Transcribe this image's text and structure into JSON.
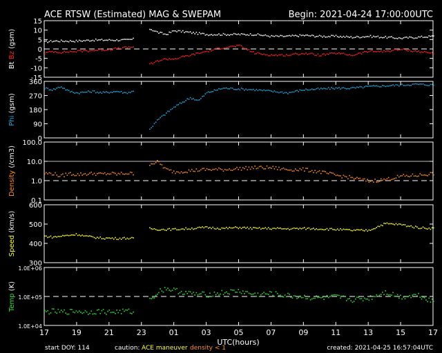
{
  "header": {
    "title": "ACE RTSW (Estimated) MAG & SWEPAM",
    "begin": "Begin: 2021-04-24 17:00:00UTC"
  },
  "footer": {
    "start_doy": "start DOY: 114",
    "caution_label": "caution:",
    "caution_maneuver": "ACE maneuver",
    "caution_density": "density < 1",
    "created": "created: 2021-04-25 16:57:04UTC"
  },
  "colors": {
    "bt": "#ffffff",
    "bz": "#ff2020",
    "phi": "#20a8e0",
    "density": "#ff8c20",
    "speed": "#ffff30",
    "temp": "#30e030",
    "axis": "#ffffff",
    "maneuver": "#ffff30",
    "density_warn": "#ff8c20"
  },
  "chart_data": {
    "type": "scatter",
    "x_axis": {
      "label": "UTC(hours)",
      "range_hours_from_start": [
        0,
        24
      ],
      "tick_labels": [
        "17",
        "19",
        "21",
        "23",
        "01",
        "03",
        "05",
        "07",
        "09",
        "11",
        "13",
        "15",
        "17"
      ]
    },
    "panels": [
      {
        "key": "mag",
        "ylabel_parts": [
          {
            "text": "Bt",
            "color": "#ffffff"
          },
          {
            "text": "  Bz",
            "color": "#ff2020"
          },
          {
            "text": "  (gsm)",
            "color": "#ffffff"
          }
        ],
        "ylim": [
          -15,
          15
        ],
        "ticks": [
          "15",
          "10",
          "5",
          "0",
          "-5",
          "-10",
          "-15"
        ],
        "tick_values": [
          15,
          10,
          5,
          0,
          -5,
          -10,
          -15
        ],
        "dashed_line": 0,
        "series": [
          {
            "name": "Bt",
            "color": "#ffffff",
            "x": [
              0,
              0.5,
              1,
              2,
              3,
              4,
              5,
              5.5,
              6.5,
              7,
              7.5,
              8,
              9,
              10,
              11,
              12,
              13,
              14,
              15,
              16,
              17,
              18,
              19,
              20,
              21,
              22,
              23,
              24
            ],
            "y": [
              4,
              4.5,
              4.5,
              4.5,
              5,
              5,
              5,
              5.5,
              11,
              9,
              8,
              10,
              9,
              8,
              8,
              8,
              8,
              7,
              7,
              7.5,
              7,
              7,
              6.5,
              7,
              6.5,
              6,
              6.5,
              7
            ]
          },
          {
            "name": "Bz",
            "color": "#ff2020",
            "x": [
              0,
              0.5,
              1,
              2,
              3,
              4,
              5,
              5.5,
              6.5,
              7,
              7.5,
              8,
              9,
              10,
              11,
              12,
              13,
              14,
              15,
              16,
              17,
              18,
              19,
              20,
              21,
              22,
              23,
              24
            ],
            "y": [
              -2,
              -1,
              -1.5,
              -1,
              -0.5,
              0,
              1,
              1.5,
              -8,
              -6,
              -5,
              -5,
              -3,
              -1,
              1,
              2,
              -2,
              -3,
              -3,
              -2,
              -3,
              -2,
              -3,
              -1,
              -1,
              0,
              -1,
              -2
            ]
          }
        ]
      },
      {
        "key": "phi",
        "ylabel_parts": [
          {
            "text": "Phi",
            "color": "#20a8e0"
          },
          {
            "text": " (gsm)",
            "color": "#ffffff"
          }
        ],
        "ylim": [
          0,
          360
        ],
        "ticks": [
          "360",
          "270",
          "180",
          "90",
          "0"
        ],
        "tick_values": [
          360,
          270,
          180,
          90,
          0
        ],
        "series": [
          {
            "name": "Phi",
            "color": "#20a8e0",
            "x": [
              0,
              0.5,
              1,
              1.5,
              2,
              2.5,
              3,
              3.5,
              4,
              4.5,
              5,
              5.5,
              6.5,
              7,
              7.5,
              8,
              8.5,
              9,
              9.5,
              10,
              11,
              12,
              13,
              14,
              15,
              16,
              17,
              18,
              19,
              20,
              21,
              22,
              23,
              24
            ],
            "y": [
              320,
              310,
              330,
              300,
              290,
              295,
              300,
              290,
              295,
              300,
              290,
              300,
              60,
              120,
              160,
              200,
              230,
              260,
              240,
              290,
              320,
              315,
              310,
              300,
              290,
              310,
              315,
              320,
              320,
              330,
              335,
              340,
              345,
              340
            ]
          }
        ]
      },
      {
        "key": "density",
        "ylabel_parts": [
          {
            "text": "Density",
            "color": "#ff8c20"
          },
          {
            "text": " (/cm3)",
            "color": "#ffffff"
          }
        ],
        "ylim": [
          0.1,
          100
        ],
        "log": true,
        "ticks": [
          "100.0",
          "10.0",
          "1.0",
          "0.1"
        ],
        "tick_values": [
          100,
          10,
          1,
          0.1
        ],
        "dashed_line": 1,
        "solid_line": 10,
        "series": [
          {
            "name": "Density",
            "color": "#ff8c20",
            "x": [
              0,
              0.5,
              1,
              1.5,
              2,
              2.5,
              3,
              3.5,
              4,
              4.5,
              5,
              5.5,
              6.5,
              7,
              7.5,
              8,
              9,
              10,
              11,
              12,
              13,
              14,
              15,
              16,
              17,
              18,
              19,
              20,
              21,
              22,
              23,
              24
            ],
            "y": [
              2.5,
              2.5,
              1.8,
              2.5,
              2.2,
              2.4,
              2.5,
              2.3,
              2.5,
              2.3,
              2.6,
              2.4,
              8,
              10,
              4,
              3,
              3.5,
              4,
              4,
              4.5,
              5,
              5,
              4,
              4,
              3,
              2,
              1.5,
              1,
              1.2,
              1.8,
              2,
              2.5
            ]
          }
        ]
      },
      {
        "key": "speed",
        "ylabel_parts": [
          {
            "text": "Speed",
            "color": "#ffff30"
          },
          {
            "text": " (km/s)",
            "color": "#ffffff"
          }
        ],
        "ylim": [
          300,
          600
        ],
        "ticks": [
          "600",
          "500",
          "400",
          "300"
        ],
        "tick_values": [
          600,
          500,
          400,
          300
        ],
        "series": [
          {
            "name": "Speed",
            "color": "#ffff30",
            "x": [
              0,
              0.5,
              1,
              1.5,
              2,
              2.5,
              3,
              3.5,
              4,
              4.5,
              5,
              5.5,
              6.5,
              7,
              8,
              9,
              10,
              11,
              12,
              13,
              14,
              15,
              16,
              17,
              18,
              19,
              20,
              21,
              22,
              23,
              24
            ],
            "y": [
              440,
              435,
              440,
              445,
              450,
              440,
              435,
              430,
              430,
              428,
              430,
              428,
              480,
              475,
              475,
              480,
              485,
              480,
              485,
              480,
              480,
              478,
              480,
              478,
              475,
              470,
              470,
              505,
              500,
              485,
              480
            ]
          }
        ]
      },
      {
        "key": "temp",
        "ylabel_parts": [
          {
            "text": "Temp",
            "color": "#30e030"
          },
          {
            "text": " (K)",
            "color": "#ffffff"
          }
        ],
        "ylim": [
          10000,
          1000000
        ],
        "log": true,
        "ticks": [
          "1.0E+06",
          "1.0E+05",
          "1.0E+04"
        ],
        "tick_values": [
          1000000,
          100000,
          10000
        ],
        "dashed_line": 100000,
        "series": [
          {
            "name": "Temp",
            "color": "#30e030",
            "x": [
              0,
              0.5,
              1,
              1.5,
              2,
              2.5,
              3,
              3.5,
              4,
              4.5,
              5,
              5.5,
              6.5,
              7,
              7.5,
              8,
              9,
              10,
              11,
              12,
              13,
              14,
              15,
              16,
              17,
              18,
              19,
              20,
              21,
              22,
              23,
              24
            ],
            "y": [
              30000,
              32000,
              30000,
              31000,
              33000,
              30000,
              31000,
              32000,
              30000,
              31000,
              32000,
              31000,
              80000,
              150000,
              200000,
              170000,
              130000,
              120000,
              140000,
              160000,
              120000,
              130000,
              110000,
              100000,
              90000,
              100000,
              80000,
              90000,
              150000,
              100000,
              120000,
              70000
            ]
          }
        ]
      }
    ]
  }
}
